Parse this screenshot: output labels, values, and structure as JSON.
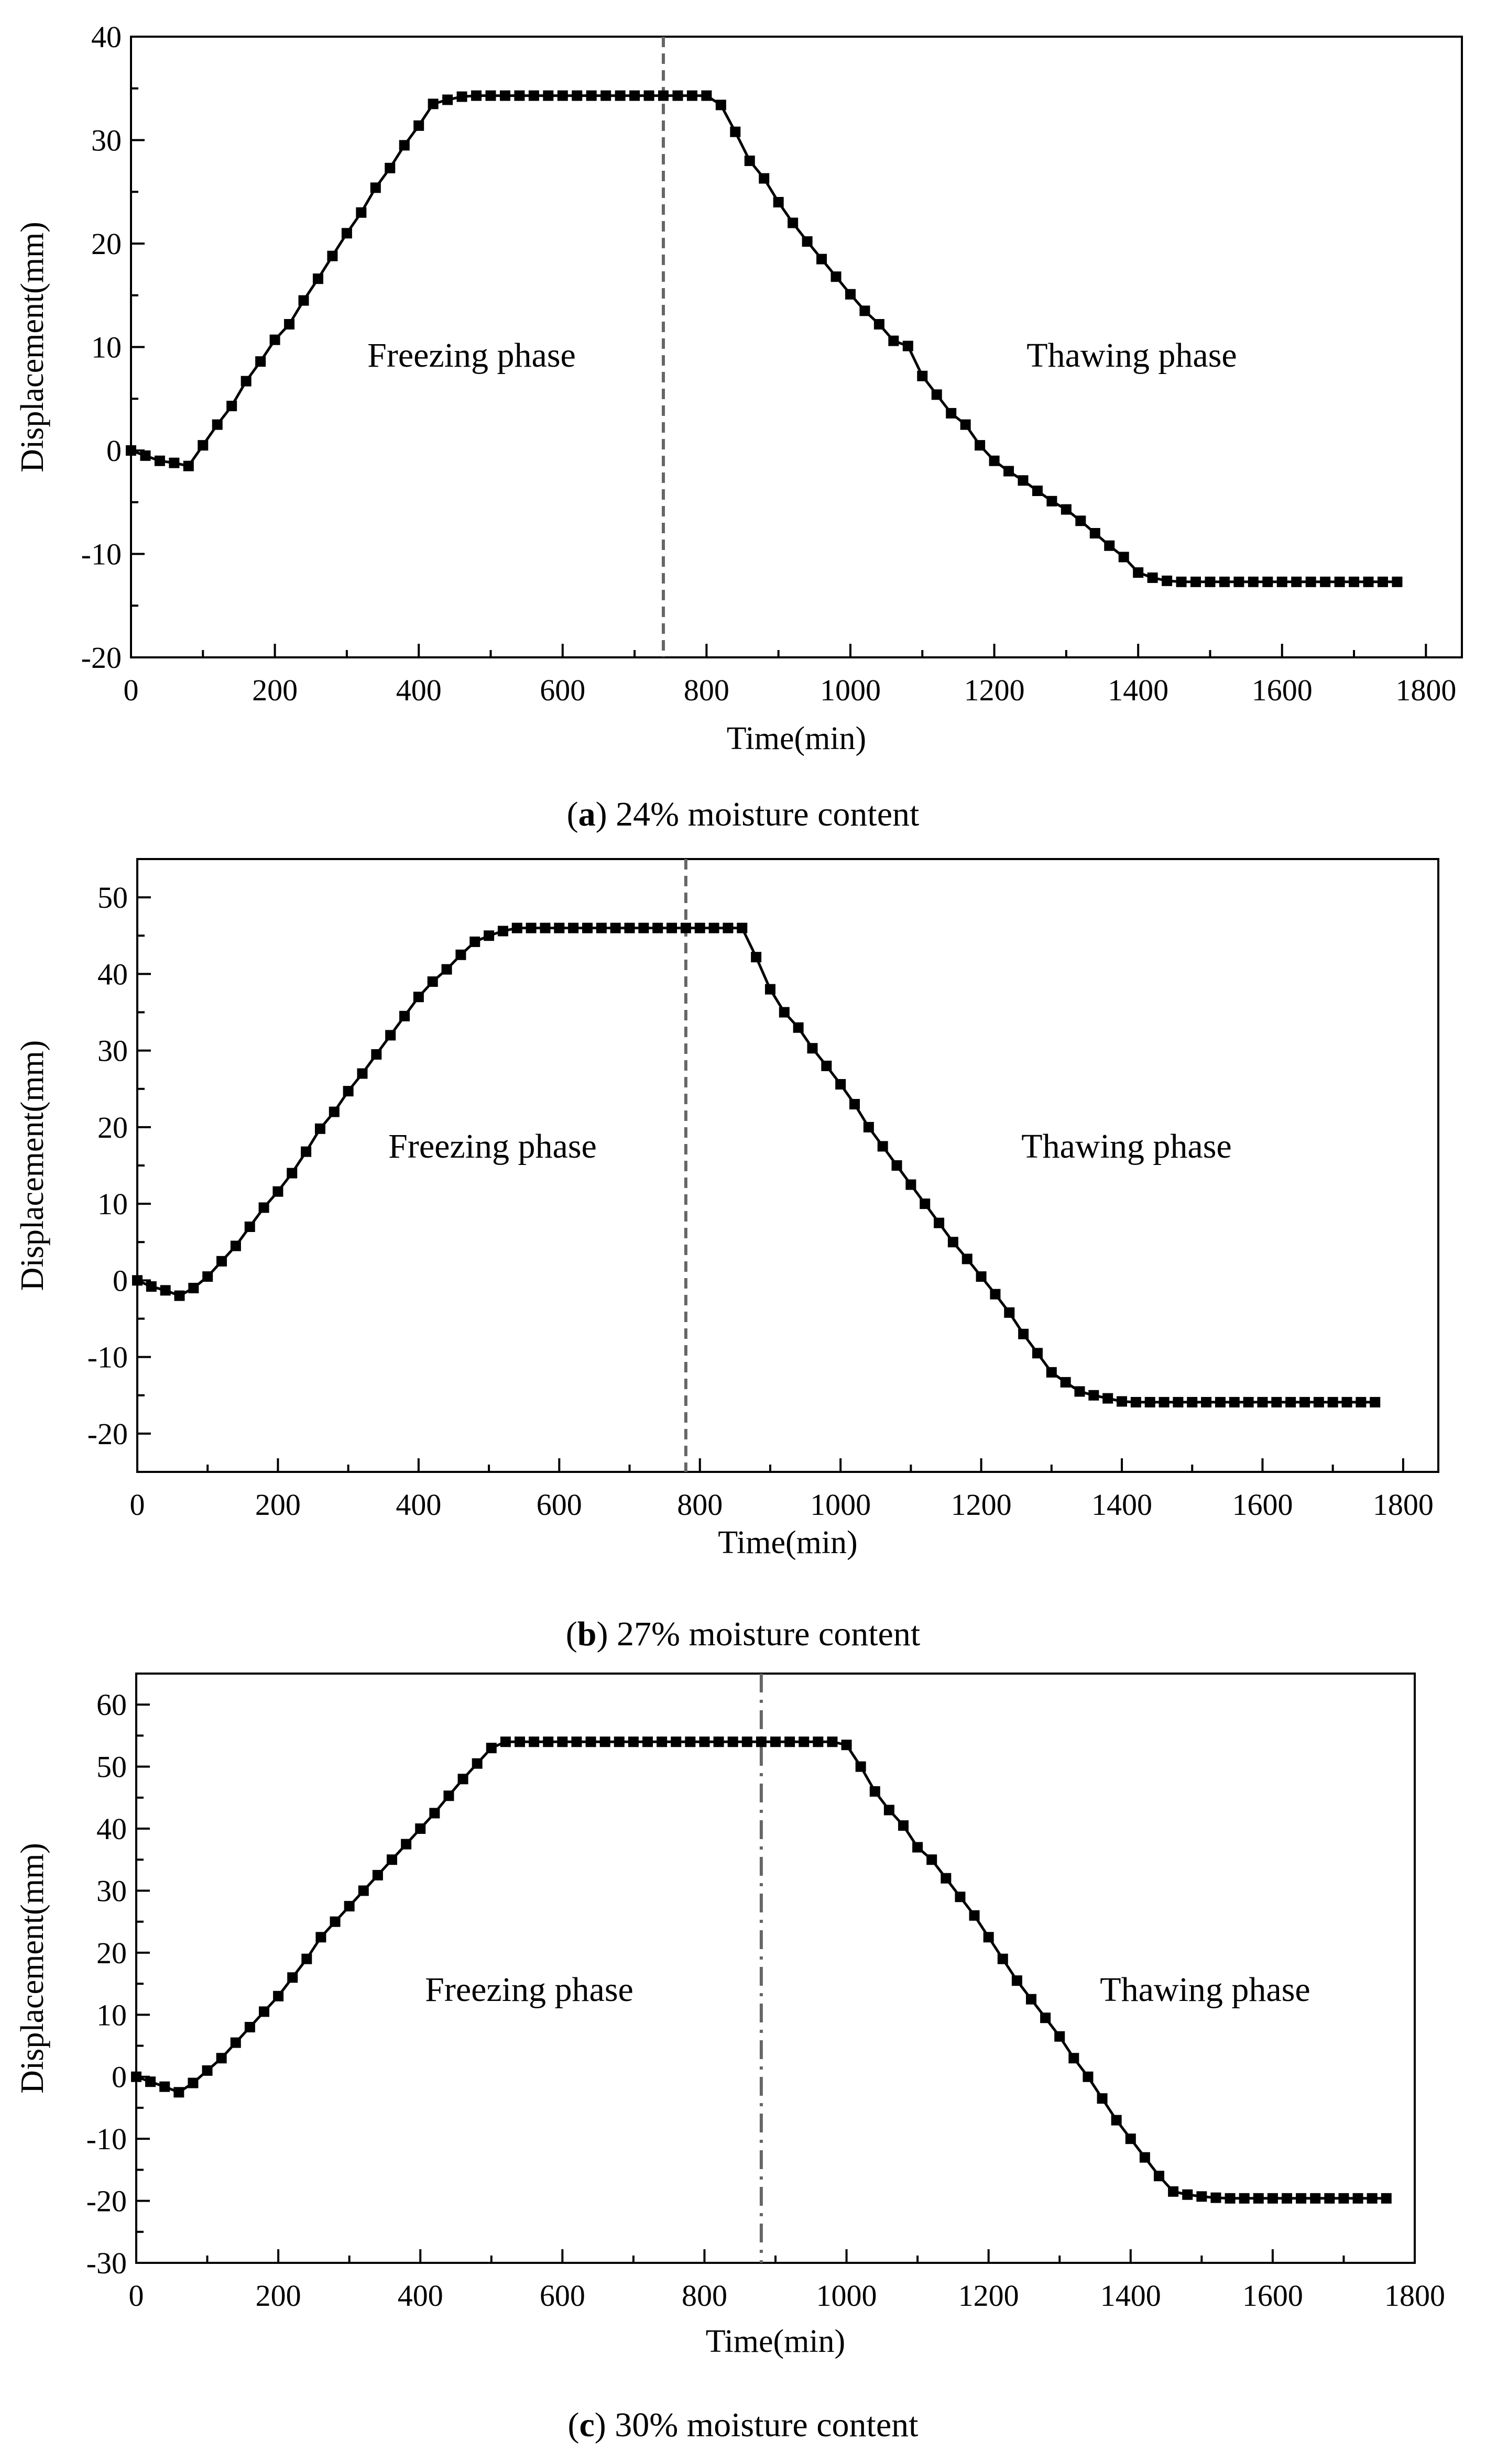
{
  "colors": {
    "line": "#000000",
    "divider": "#666666",
    "marker": "#000000"
  },
  "chart_data": [
    {
      "type": "line",
      "caption_letter": "a",
      "caption_text": "24% moisture content",
      "xlabel": "Time(min)",
      "ylabel": "Displacement(mm)",
      "xlim": [
        0,
        1850
      ],
      "ylim": [
        -20,
        40
      ],
      "xticks": [
        0,
        200,
        400,
        600,
        800,
        1000,
        1200,
        1400,
        1600,
        1800
      ],
      "yticks": [
        -20,
        -10,
        0,
        10,
        20,
        30,
        40
      ],
      "annotations": [
        "Freezing phase",
        "Thawing phase"
      ],
      "divider_time": 740,
      "divider_style": "dashed",
      "grid": false,
      "series": [
        {
          "x": [
            0,
            20,
            40,
            60,
            80,
            100,
            120,
            140,
            160,
            180,
            200,
            220,
            240,
            260,
            280,
            300,
            320,
            340,
            360,
            380,
            400,
            420,
            440,
            460,
            480,
            500,
            520,
            540,
            560,
            580,
            600,
            620,
            640,
            660,
            680,
            700,
            720,
            740,
            760,
            780,
            800,
            820,
            840,
            860,
            880,
            900,
            920,
            940,
            960,
            980,
            1000,
            1020,
            1040,
            1060,
            1080,
            1100,
            1120,
            1140,
            1160,
            1180,
            1200,
            1220,
            1240,
            1260,
            1280,
            1300,
            1320,
            1340,
            1360,
            1380,
            1400,
            1420,
            1440,
            1460,
            1480,
            1500,
            1520,
            1540,
            1560,
            1580,
            1600,
            1620,
            1640,
            1660,
            1680,
            1700,
            1720,
            1740,
            1760
          ],
          "y": [
            0,
            -0.5,
            -1,
            -1.2,
            -1.5,
            0.5,
            2.5,
            4.3,
            6.7,
            8.6,
            10.7,
            12.2,
            14.5,
            16.6,
            18.8,
            21,
            23,
            25.4,
            27.3,
            29.5,
            31.4,
            33.5,
            33.9,
            34.2,
            34.3,
            34.3,
            34.3,
            34.3,
            34.3,
            34.3,
            34.3,
            34.3,
            34.3,
            34.3,
            34.3,
            34.3,
            34.3,
            34.3,
            34.3,
            34.3,
            34.3,
            33.4,
            30.8,
            28,
            26.3,
            24,
            22,
            20.2,
            18.5,
            16.8,
            15.1,
            13.5,
            12.2,
            10.6,
            10.1,
            7.2,
            5.4,
            3.6,
            2.5,
            0.5,
            -1,
            -2,
            -2.9,
            -3.9,
            -4.9,
            -5.7,
            -6.8,
            -8,
            -9.2,
            -10.3,
            -11.8,
            -12.3,
            -12.6,
            -12.7,
            -12.7,
            -12.7,
            -12.7,
            -12.7,
            -12.7,
            -12.7,
            -12.7,
            -12.7,
            -12.7,
            -12.7,
            -12.7,
            -12.7,
            -12.7,
            -12.7,
            -12.7
          ]
        }
      ]
    },
    {
      "type": "line",
      "caption_letter": "b",
      "caption_text": "27% moisture content",
      "xlabel": "Time(min)",
      "ylabel": "Displacement(mm)",
      "xlim": [
        0,
        1850
      ],
      "ylim": [
        -25,
        55
      ],
      "xticks": [
        0,
        200,
        400,
        600,
        800,
        1000,
        1200,
        1400,
        1600,
        1800
      ],
      "yticks": [
        -20,
        -10,
        0,
        10,
        20,
        30,
        40,
        50
      ],
      "annotations": [
        "Freezing phase",
        "Thawing phase"
      ],
      "divider_time": 780,
      "divider_style": "dashed",
      "grid": false,
      "series": [
        {
          "x": [
            0,
            20,
            40,
            60,
            80,
            100,
            120,
            140,
            160,
            180,
            200,
            220,
            240,
            260,
            280,
            300,
            320,
            340,
            360,
            380,
            400,
            420,
            440,
            460,
            480,
            500,
            520,
            540,
            560,
            580,
            600,
            620,
            640,
            660,
            680,
            700,
            720,
            740,
            760,
            780,
            800,
            820,
            840,
            860,
            880,
            900,
            920,
            940,
            960,
            980,
            1000,
            1020,
            1040,
            1060,
            1080,
            1100,
            1120,
            1140,
            1160,
            1180,
            1200,
            1220,
            1240,
            1260,
            1280,
            1300,
            1320,
            1340,
            1360,
            1380,
            1400,
            1420,
            1440,
            1460,
            1480,
            1500,
            1520,
            1540,
            1560,
            1580,
            1600,
            1620,
            1640,
            1660,
            1680,
            1700,
            1720,
            1740,
            1760
          ],
          "y": [
            0,
            -0.8,
            -1.3,
            -2,
            -1,
            0.5,
            2.5,
            4.5,
            7,
            9.5,
            11.6,
            14,
            16.8,
            19.8,
            22,
            24.7,
            27,
            29.5,
            32,
            34.5,
            37,
            39,
            40.6,
            42.5,
            44.2,
            45,
            45.6,
            46,
            46,
            46,
            46,
            46,
            46,
            46,
            46,
            46,
            46,
            46,
            46,
            46,
            46,
            46,
            46,
            46,
            42.2,
            38,
            35,
            33,
            30.3,
            28,
            25.6,
            23,
            20,
            17.5,
            15,
            12.5,
            10,
            7.5,
            5,
            2.8,
            0.5,
            -1.8,
            -4.2,
            -7,
            -9.5,
            -12,
            -13.3,
            -14.5,
            -15,
            -15.4,
            -15.8,
            -15.9,
            -15.9,
            -15.9,
            -15.9,
            -15.9,
            -15.9,
            -15.9,
            -15.9,
            -15.9,
            -15.9,
            -15.9,
            -15.9,
            -15.9,
            -15.9,
            -15.9,
            -15.9,
            -15.9,
            -15.9
          ]
        }
      ]
    },
    {
      "type": "line",
      "caption_letter": "c",
      "caption_text": "30% moisture content",
      "xlabel": "Time(min)",
      "ylabel": "Displacement(mm)",
      "xlim": [
        0,
        1800
      ],
      "ylim": [
        -30,
        65
      ],
      "xticks": [
        0,
        200,
        400,
        600,
        800,
        1000,
        1200,
        1400,
        1600,
        1800
      ],
      "yticks": [
        -30,
        -20,
        -10,
        0,
        10,
        20,
        30,
        40,
        50,
        60
      ],
      "annotations": [
        "Freezing phase",
        "Thawing phase"
      ],
      "divider_time": 880,
      "divider_style": "dashdot",
      "grid": false,
      "series": [
        {
          "x": [
            0,
            20,
            40,
            60,
            80,
            100,
            120,
            140,
            160,
            180,
            200,
            220,
            240,
            260,
            280,
            300,
            320,
            340,
            360,
            380,
            400,
            420,
            440,
            460,
            480,
            500,
            520,
            540,
            560,
            580,
            600,
            620,
            640,
            660,
            680,
            700,
            720,
            740,
            760,
            780,
            800,
            820,
            840,
            860,
            880,
            900,
            920,
            940,
            960,
            980,
            1000,
            1020,
            1040,
            1060,
            1080,
            1100,
            1120,
            1140,
            1160,
            1180,
            1200,
            1220,
            1240,
            1260,
            1280,
            1300,
            1320,
            1340,
            1360,
            1380,
            1400,
            1420,
            1440,
            1460,
            1480,
            1500,
            1520,
            1540,
            1560,
            1580,
            1600,
            1620,
            1640,
            1660,
            1680,
            1700,
            1720,
            1740,
            1760
          ],
          "y": [
            0,
            -0.8,
            -1.6,
            -2.5,
            -1,
            1,
            3,
            5.5,
            8,
            10.5,
            13,
            16,
            19,
            22.5,
            25,
            27.5,
            30,
            32.5,
            35,
            37.5,
            40,
            42.5,
            45.3,
            48,
            50.5,
            53,
            54,
            54,
            54,
            54,
            54,
            54,
            54,
            54,
            54,
            54,
            54,
            54,
            54,
            54,
            54,
            54,
            54,
            54,
            54,
            54,
            54,
            54,
            54,
            54,
            53.5,
            50,
            46,
            43,
            40.5,
            37,
            35,
            32,
            29,
            26,
            22.5,
            19,
            15.5,
            12.5,
            9.5,
            6.5,
            3,
            0,
            -3.5,
            -7,
            -10,
            -13,
            -16,
            -18.5,
            -19,
            -19.3,
            -19.5,
            -19.6,
            -19.6,
            -19.6,
            -19.6,
            -19.6,
            -19.6,
            -19.6,
            -19.6,
            -19.6,
            -19.6,
            -19.6,
            -19.6
          ]
        }
      ]
    }
  ]
}
